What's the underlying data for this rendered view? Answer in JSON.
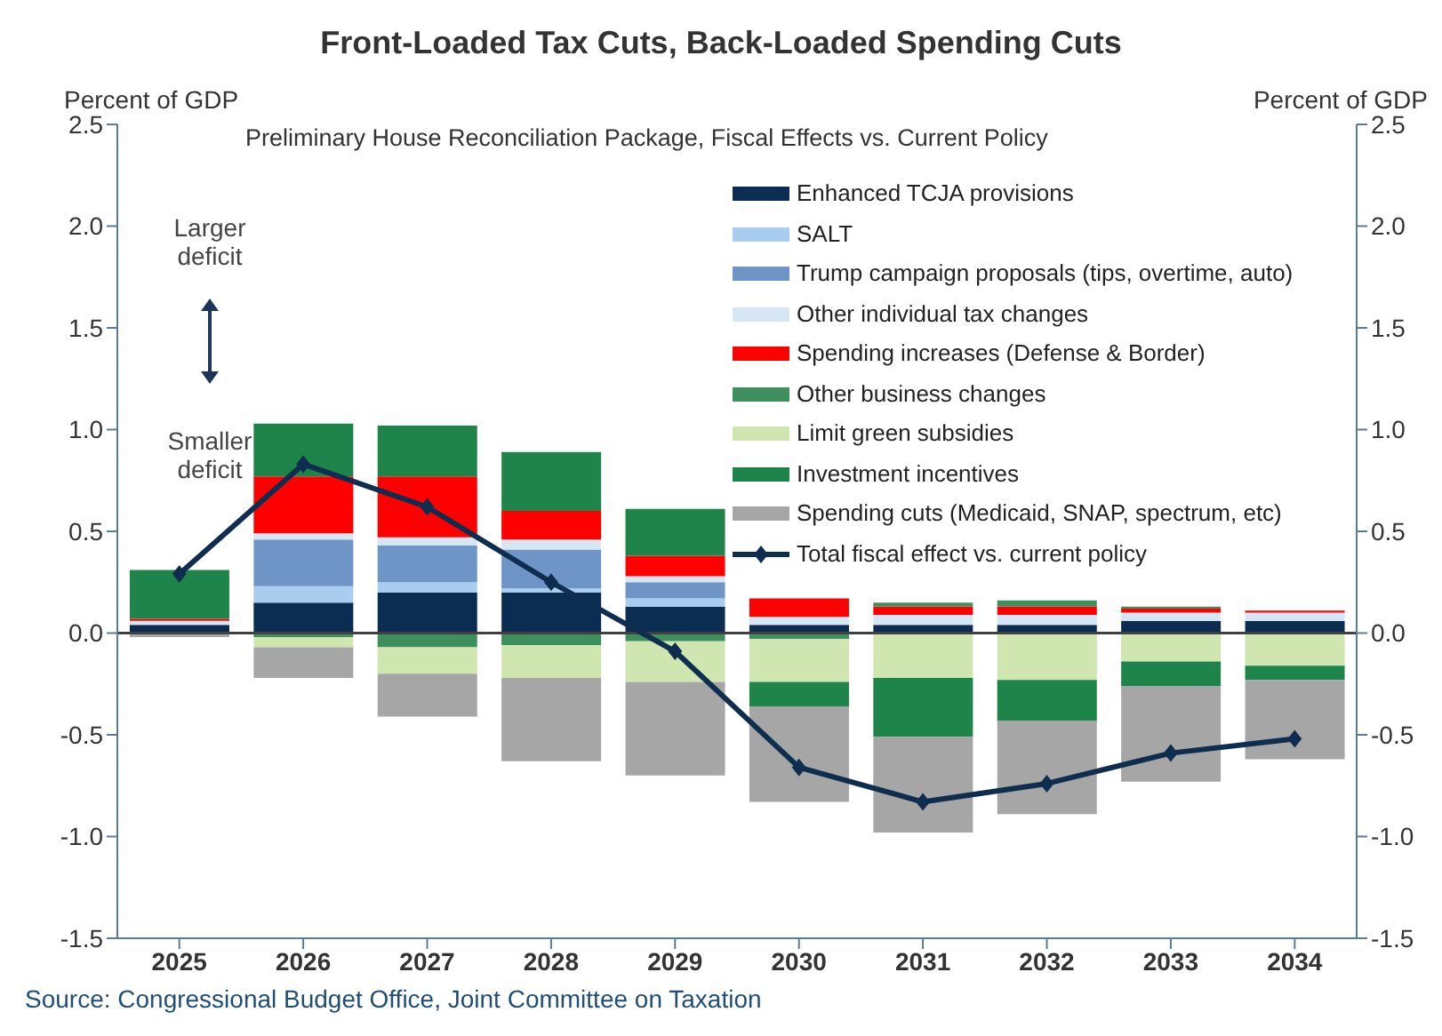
{
  "chart_data": {
    "type": "bar",
    "title": "Front-Loaded Tax Cuts, Back-Loaded Spending Cuts",
    "subtitle": "Preliminary House Reconciliation Package, Fiscal Effects vs. Current Policy",
    "ylabel": "Percent of GDP",
    "y2label": "Percent of GDP",
    "categories": [
      "2025",
      "2026",
      "2027",
      "2028",
      "2029",
      "2030",
      "2031",
      "2032",
      "2033",
      "2034"
    ],
    "stacked": true,
    "series": [
      {
        "name": "Enhanced TCJA provisions",
        "color": "#0b2d52",
        "values": [
          0.04,
          0.15,
          0.2,
          0.2,
          0.13,
          0.04,
          0.04,
          0.04,
          0.06,
          0.06
        ]
      },
      {
        "name": "SALT",
        "color": "#a9cdee",
        "values": [
          null,
          0.08,
          0.05,
          0.02,
          0.04,
          null,
          null,
          null,
          null,
          null
        ]
      },
      {
        "name": "Trump campaign proposals (tips, overtime, auto)",
        "color": "#6f95c6",
        "values": [
          null,
          0.23,
          0.18,
          0.19,
          0.08,
          null,
          null,
          null,
          null,
          null
        ]
      },
      {
        "name": "Other individual tax changes",
        "color": "#d6e6f5",
        "values": [
          0.02,
          0.03,
          0.04,
          0.05,
          0.03,
          0.04,
          0.05,
          0.05,
          0.04,
          0.04
        ]
      },
      {
        "name": "Spending increases (Defense & Border)",
        "color": "#ff0000",
        "values": [
          0.01,
          0.28,
          0.3,
          0.14,
          0.1,
          0.09,
          0.04,
          0.04,
          0.02,
          0.01
        ]
      },
      {
        "name": "Other business changes",
        "color": "#3f8f5e",
        "values": [
          null,
          -0.02,
          -0.07,
          -0.06,
          -0.04,
          -0.03,
          0.02,
          0.03,
          0.01,
          null
        ]
      },
      {
        "name": "Limit green subsidies",
        "color": "#cfe6b0",
        "values": [
          null,
          -0.05,
          -0.13,
          -0.16,
          -0.2,
          -0.21,
          -0.22,
          -0.23,
          -0.14,
          -0.16
        ]
      },
      {
        "name": "Investment incentives",
        "color": "#1e8449",
        "values": [
          0.24,
          0.26,
          0.25,
          0.29,
          0.23,
          -0.12,
          -0.29,
          -0.2,
          -0.12,
          -0.07
        ]
      },
      {
        "name": "Spending cuts (Medicaid, SNAP, spectrum, etc)",
        "color": "#a6a6a6",
        "values": [
          -0.02,
          -0.15,
          -0.21,
          -0.41,
          -0.46,
          -0.47,
          -0.47,
          -0.46,
          -0.47,
          -0.39
        ]
      },
      {
        "name": "Total fiscal effect vs. current policy",
        "type": "line",
        "color": "#0f2d4f",
        "marker": "diamond",
        "values": [
          0.29,
          0.83,
          0.62,
          0.25,
          -0.09,
          -0.66,
          -0.83,
          -0.74,
          -0.59,
          -0.52
        ]
      }
    ],
    "ylim": [
      -1.5,
      2.5
    ],
    "yticks": [
      {
        "value": -1.5,
        "label": "-1.5"
      },
      {
        "value": -1,
        "label": "-1.0"
      },
      {
        "value": -0.5,
        "label": "-0.5"
      },
      {
        "value": 0,
        "label": "0.0"
      },
      {
        "value": 0.5,
        "label": "0.5"
      },
      {
        "value": 1,
        "label": "1.0"
      },
      {
        "value": 1.5,
        "label": "1.5"
      },
      {
        "value": 2,
        "label": "2.0"
      },
      {
        "value": 2.5,
        "label": "2.5"
      }
    ],
    "y2lim": [
      -1.5,
      2.5
    ],
    "y2ticks": [
      {
        "value": -1.5,
        "label": "-1.5"
      },
      {
        "value": -1,
        "label": "-1.0"
      },
      {
        "value": -0.5,
        "label": "-0.5"
      },
      {
        "value": 0,
        "label": "0.0"
      },
      {
        "value": 0.5,
        "label": "0.5"
      },
      {
        "value": 1,
        "label": "1.0"
      },
      {
        "value": 1.5,
        "label": "1.5"
      },
      {
        "value": 2,
        "label": "2.0"
      },
      {
        "value": 2.5,
        "label": "2.5"
      }
    ],
    "ref_lines": [
      {
        "axis": "y",
        "value": 0,
        "color": "#404040"
      }
    ],
    "legend": "top right",
    "grid": false,
    "annotations": [
      "Larger deficit",
      "Smaller deficit",
      "Source: Congressional Budget Office, Joint Committee on Taxation"
    ]
  }
}
